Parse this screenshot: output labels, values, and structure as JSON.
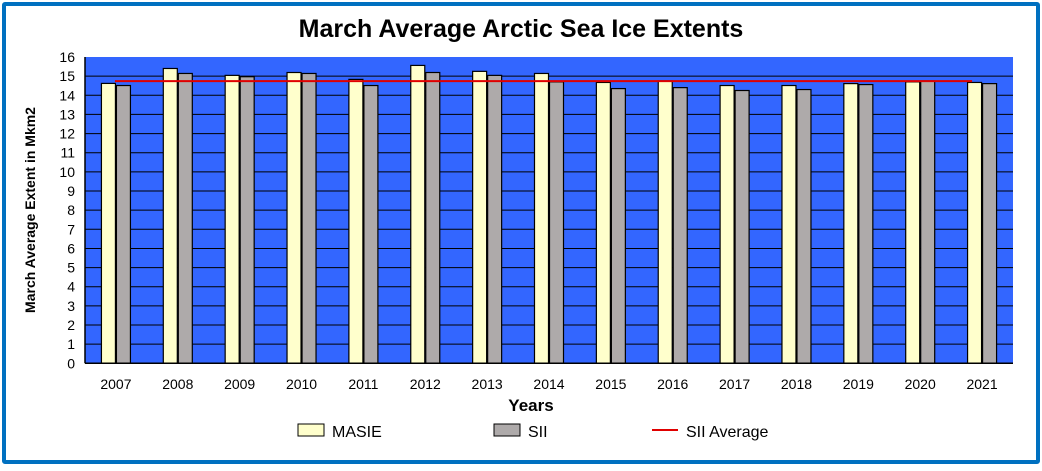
{
  "chart_data": {
    "type": "bar",
    "title": "March Average Arctic Sea Ice Extents",
    "xlabel": "Years",
    "ylabel": "March Average Extent in Mkm2",
    "ylim": [
      0,
      16
    ],
    "yticks": [
      0,
      1,
      2,
      3,
      4,
      5,
      6,
      7,
      8,
      9,
      10,
      11,
      12,
      13,
      14,
      15,
      16
    ],
    "grid": true,
    "legend_position": "bottom",
    "categories": [
      "2007",
      "2008",
      "2009",
      "2010",
      "2011",
      "2012",
      "2013",
      "2014",
      "2015",
      "2016",
      "2017",
      "2018",
      "2019",
      "2020",
      "2021"
    ],
    "series": [
      {
        "name": "MASIE",
        "color": "#ffffcc",
        "values": [
          14.62,
          15.4,
          15.04,
          15.19,
          14.83,
          15.56,
          15.25,
          15.14,
          14.67,
          14.75,
          14.51,
          14.51,
          14.61,
          14.7,
          14.67
        ]
      },
      {
        "name": "SII",
        "color": "#aeaaaa",
        "values": [
          14.51,
          15.14,
          14.97,
          15.14,
          14.51,
          15.19,
          15.04,
          14.7,
          14.35,
          14.4,
          14.25,
          14.3,
          14.56,
          14.75,
          14.61
        ]
      }
    ],
    "reference_line": {
      "name": "SII Average",
      "color": "#e00000",
      "value": 14.74
    },
    "plot_background": "#3366ff"
  }
}
